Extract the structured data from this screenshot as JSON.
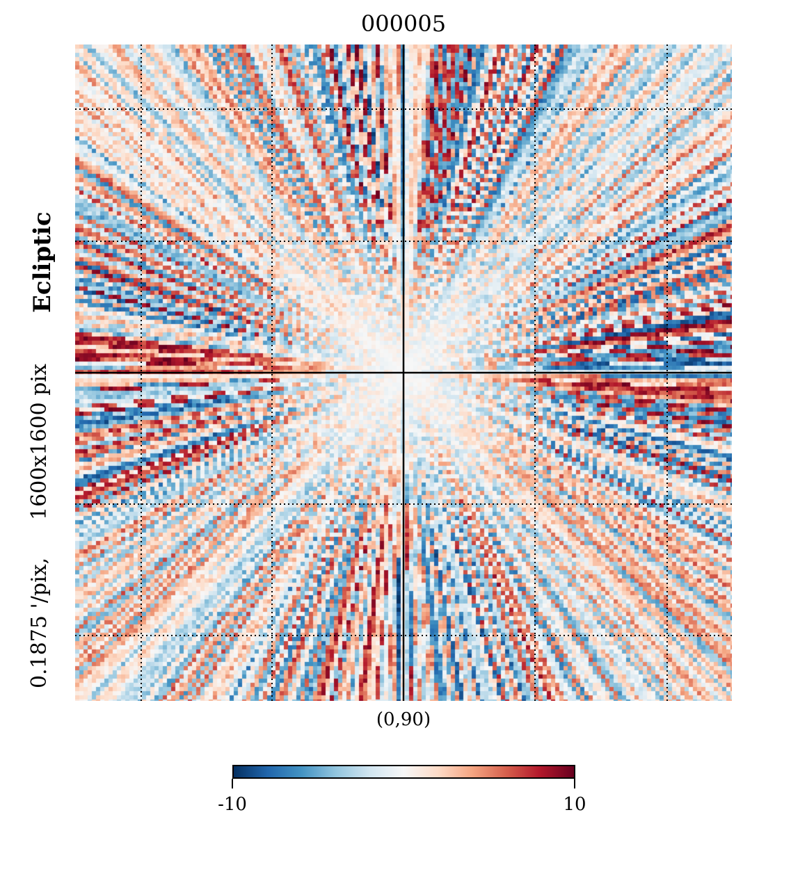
{
  "chart_data": {
    "type": "heatmap",
    "title": "000005",
    "projection": "gnomonic",
    "coordinate_system": "Ecliptic",
    "resolution_label": "0.1875 '/pix,",
    "size_label": "1600x1600 pix",
    "center_label": "(0,90)",
    "colormap": "RdBu_r",
    "colorbar": {
      "min": -10,
      "max": 10,
      "min_label": "-10",
      "max_label": "10"
    },
    "graticule": "dotted",
    "colors": {
      "neg_extreme": "#053061",
      "neg_strong": "#2166ac",
      "neg_mid": "#4393c3",
      "neg_light": "#92c5de",
      "neg_pale": "#d1e5f0",
      "neutral": "#f7f7f7",
      "pos_pale": "#fddbc7",
      "pos_light": "#f4a582",
      "pos_mid": "#d6604d",
      "pos_strong": "#b2182b",
      "pos_extreme": "#67001f"
    }
  }
}
